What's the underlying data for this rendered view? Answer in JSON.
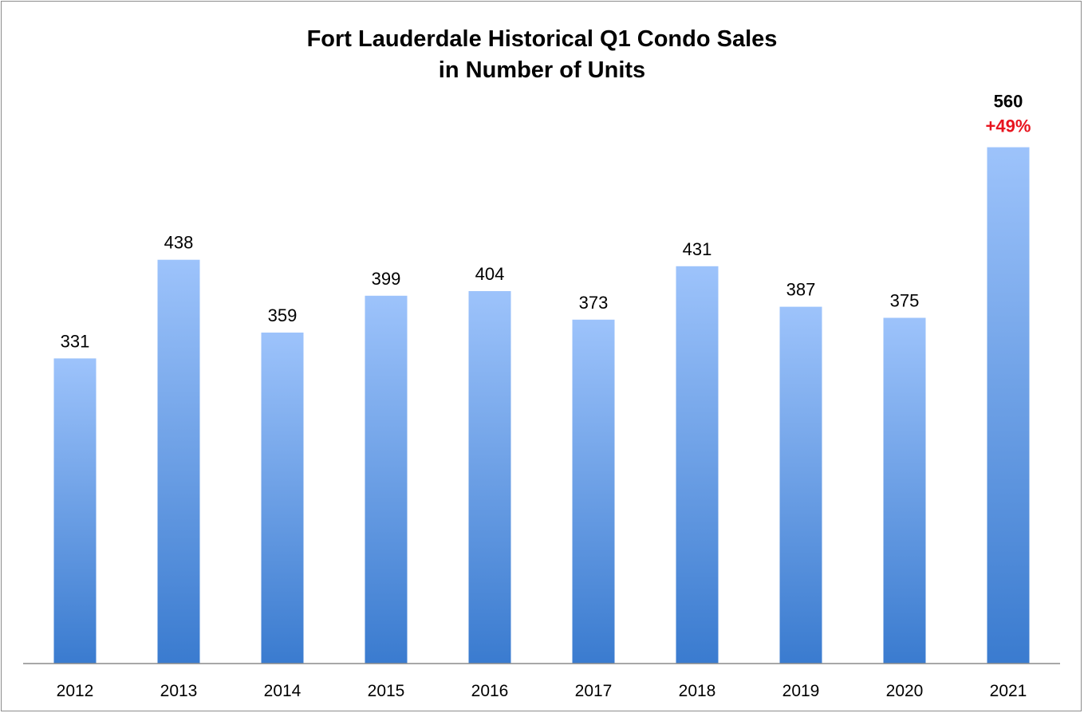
{
  "chart_data": {
    "type": "bar",
    "title": "Fort Lauderdale Historical Q1 Condo Sales",
    "subtitle": "in Number of Units",
    "categories": [
      "2012",
      "2013",
      "2014",
      "2015",
      "2016",
      "2017",
      "2018",
      "2019",
      "2020",
      "2021"
    ],
    "values": [
      331,
      438,
      359,
      399,
      404,
      373,
      431,
      387,
      375,
      560
    ],
    "data_labels": [
      "331",
      "438",
      "359",
      "399",
      "404",
      "373",
      "431",
      "387",
      "375",
      "560"
    ],
    "annotations": [
      {
        "category": "2021",
        "text": "+49%",
        "color": "#e8141e"
      }
    ],
    "ylim": [
      0,
      660
    ],
    "grid": false,
    "legend": "none",
    "colors": {
      "bar_top": "#9dc3fb",
      "bar_bottom": "#3a7bcf",
      "axis": "#8c8c8c"
    }
  }
}
